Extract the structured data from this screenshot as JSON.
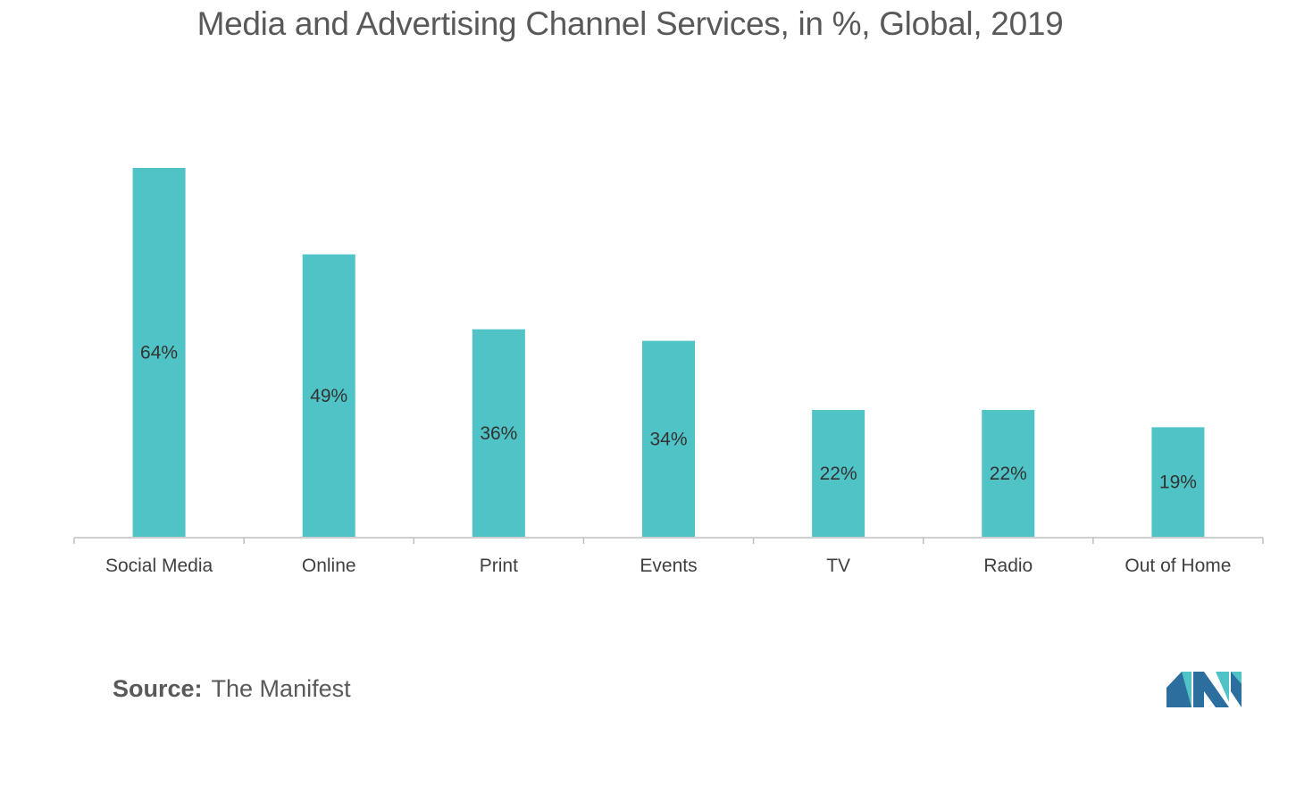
{
  "chart_data": {
    "type": "bar",
    "title": "Media and Advertising Channel Services, in %, Global, 2019",
    "categories": [
      "Social Media",
      "Online",
      "Print",
      "Events",
      "TV",
      "Radio",
      "Out of Home"
    ],
    "values": [
      64,
      49,
      36,
      34,
      22,
      22,
      19
    ],
    "data_labels": [
      "64%",
      "49%",
      "36%",
      "34%",
      "22%",
      "22%",
      "19%"
    ],
    "xlabel": "",
    "ylabel": "",
    "ylim": [
      0,
      64
    ],
    "grid": false,
    "legend": "none",
    "bar_color": "#4fc3c6"
  },
  "source": {
    "label": "Source:",
    "text": "The Manifest"
  },
  "logo": {
    "icon": "mordor-intelligence-logo-icon",
    "colors": [
      "#2c6e9e",
      "#4fc3c6"
    ]
  }
}
